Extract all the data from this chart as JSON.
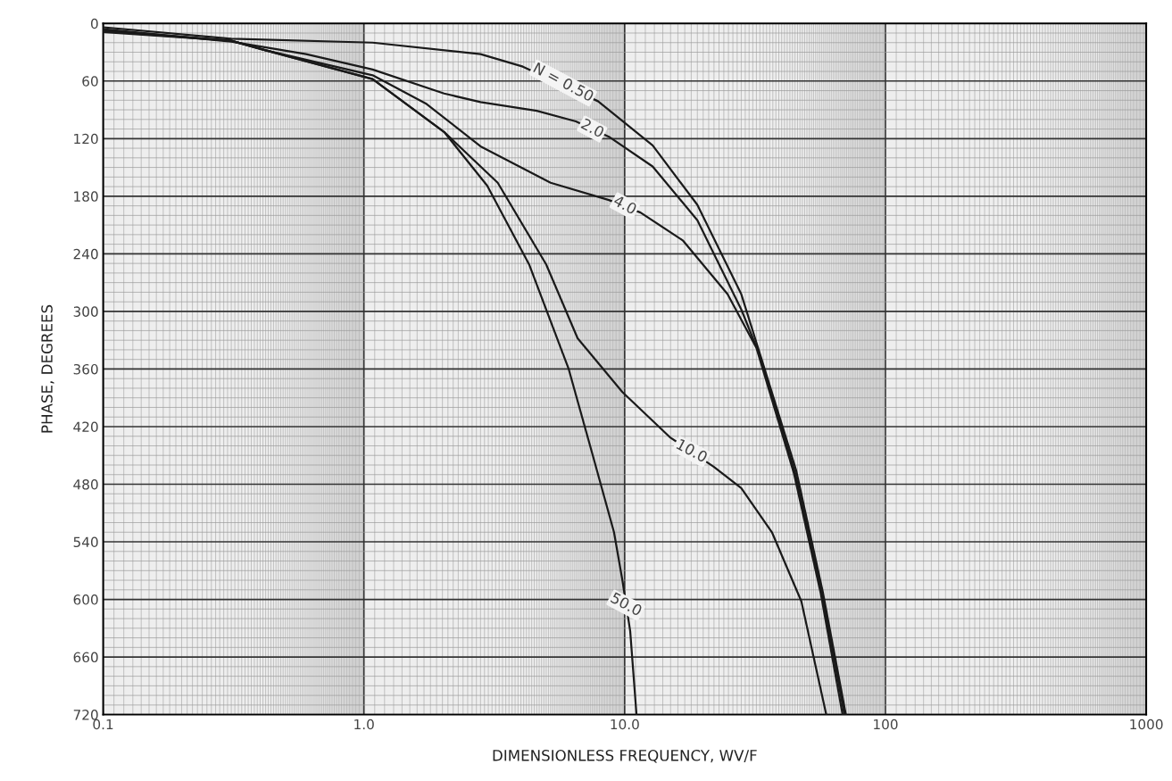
{
  "chart_data": {
    "type": "line",
    "xlabel": "DIMENSIONLESS FREQUENCY, WV/F",
    "ylabel": "PHASE, DEGREES",
    "log": "x",
    "xlim": [
      0.1,
      1000
    ],
    "ylim": [
      720,
      0
    ],
    "xticks": [
      {
        "value": 0.1,
        "label": "0.1"
      },
      {
        "value": 1,
        "label": "1.0"
      },
      {
        "value": 10,
        "label": "10.0"
      },
      {
        "value": 100,
        "label": "100"
      },
      {
        "value": 1000,
        "label": "1000"
      }
    ],
    "yticks": [
      0,
      60,
      120,
      180,
      240,
      300,
      360,
      420,
      480,
      540,
      600,
      660,
      720
    ],
    "grid": true,
    "line_style": "solid",
    "series": [
      {
        "color": "#1a1a1a",
        "x": [
          0.1,
          0.31,
          1.08,
          2.8,
          4.07,
          7.9,
          12.8,
          19,
          28,
          33,
          45.5,
          57.5,
          70.5
        ],
        "values": [
          4,
          16,
          20,
          32,
          45,
          81,
          127,
          189,
          282,
          344,
          466,
          592,
          720
        ]
      },
      {
        "color": "#1a1a1a",
        "x": [
          0.1,
          0.31,
          0.6,
          1.08,
          2.03,
          2.8,
          4.6,
          6.5,
          8.7,
          12.8,
          19,
          28,
          33,
          45,
          57,
          69.6
        ],
        "values": [
          6,
          19,
          32,
          48,
          73,
          82,
          91,
          102,
          118,
          149,
          205,
          298,
          346,
          468,
          593,
          720
        ]
      },
      {
        "color": "#1a1a1a",
        "x": [
          0.1,
          0.31,
          0.42,
          1.08,
          1.74,
          2.8,
          5.2,
          8.7,
          11.5,
          16.7,
          24.8,
          32,
          44.5,
          56.5,
          68.5
        ],
        "values": [
          7,
          18,
          28,
          54,
          84,
          128,
          166,
          184,
          197,
          226,
          282,
          338,
          468,
          594,
          720
        ]
      },
      {
        "color": "#1a1a1a",
        "x": [
          0.1,
          0.31,
          0.42,
          1.08,
          2.03,
          3.26,
          5.0,
          6.6,
          9.8,
          14.9,
          22,
          28,
          36.7,
          47.6,
          59.3
        ],
        "values": [
          8,
          18,
          28,
          58,
          113,
          166,
          251,
          328,
          384,
          431,
          462,
          484,
          530,
          602,
          720
        ]
      },
      {
        "color": "#1a1a1a",
        "x": [
          0.1,
          0.31,
          0.42,
          1.08,
          2.03,
          2.97,
          4.3,
          6.1,
          7.6,
          9.1,
          9.8,
          10.5,
          11.1
        ],
        "values": [
          9,
          18,
          28,
          58,
          113,
          169,
          251,
          360,
          453,
          530,
          580,
          633,
          720
        ]
      }
    ],
    "annotations": [
      {
        "text": "N = 0.50",
        "x": 5.8,
        "y": 62
      },
      {
        "text": "2.0",
        "x": 7.5,
        "y": 110
      },
      {
        "text": "4.0",
        "x": 10,
        "y": 190
      },
      {
        "text": "10.0",
        "x": 18,
        "y": 446
      },
      {
        "text": "50.0",
        "x": 10.1,
        "y": 606
      }
    ]
  }
}
